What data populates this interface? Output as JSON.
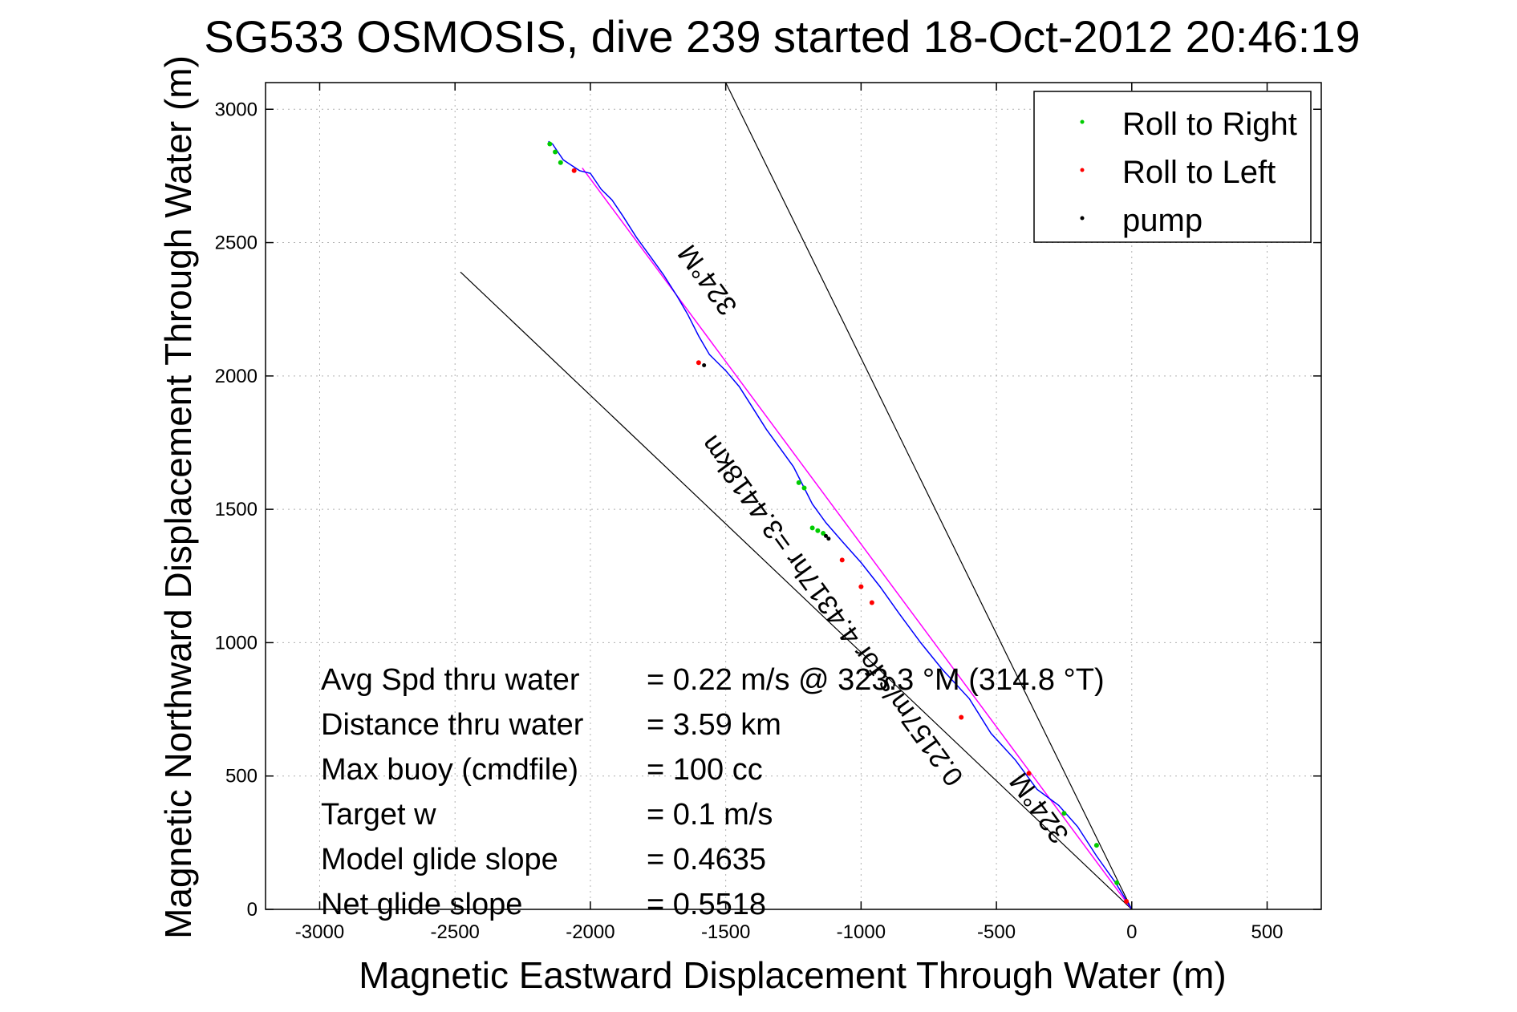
{
  "chart_data": {
    "type": "scatter",
    "title": "SG533 OSMOSIS, dive 239 started 18-Oct-2012 20:46:19",
    "xlabel": "Magnetic Eastward Displacement Through Water (m)",
    "ylabel": "Magnetic Northward Displacement Through Water (m)",
    "xlim": [
      -3200,
      700
    ],
    "ylim": [
      0,
      3100
    ],
    "x_ticks": [
      -3000,
      -2500,
      -2000,
      -1500,
      -1000,
      -500,
      0,
      500
    ],
    "y_ticks": [
      0,
      500,
      1000,
      1500,
      2000,
      2500,
      3000
    ],
    "grid": true,
    "legend_position": "top-right",
    "legend": [
      {
        "name": "Roll to Right",
        "color": "#00cc00"
      },
      {
        "name": "Roll to Left",
        "color": "#ff0000"
      },
      {
        "name": "pump",
        "color": "#000000"
      }
    ],
    "glider_track": {
      "color": "#0000ff",
      "x": [
        0,
        -60,
        -130,
        -200,
        -270,
        -350,
        -430,
        -520,
        -600,
        -700,
        -780,
        -860,
        -930,
        -1000,
        -1070,
        -1130,
        -1180,
        -1210,
        -1250,
        -1300,
        -1350,
        -1400,
        -1450,
        -1500,
        -1560,
        -1600,
        -1640,
        -1680,
        -1730,
        -1780,
        -1830,
        -1880,
        -1920,
        -1960,
        -2000,
        -2040,
        -2070,
        -2100,
        -2120,
        -2140,
        -2155
      ],
      "y": [
        0,
        100,
        200,
        310,
        390,
        450,
        560,
        660,
        790,
        900,
        1000,
        1110,
        1210,
        1300,
        1380,
        1450,
        1520,
        1580,
        1660,
        1730,
        1800,
        1880,
        1960,
        2020,
        2080,
        2150,
        2230,
        2300,
        2380,
        2450,
        2520,
        2600,
        2660,
        2700,
        2760,
        2770,
        2790,
        2810,
        2840,
        2870,
        2880
      ]
    },
    "roll_right_points": {
      "x": [
        -2150,
        -2130,
        -2110,
        -1180,
        -1160,
        -1140,
        -1230,
        -1210,
        -250,
        -130,
        -55
      ],
      "y": [
        2870,
        2840,
        2800,
        1430,
        1420,
        1410,
        1600,
        1580,
        360,
        240,
        100
      ]
    },
    "roll_left_points": {
      "x": [
        -2060,
        -1600,
        -1070,
        -1000,
        -960,
        -630,
        -380,
        -20
      ],
      "y": [
        2770,
        2050,
        1310,
        1210,
        1150,
        720,
        510,
        30
      ]
    },
    "pump_points": {
      "x": [
        -1580,
        -1130,
        -1120
      ],
      "y": [
        2040,
        1400,
        1390
      ]
    },
    "heading_line": {
      "color": "#ff00ff",
      "x": [
        0,
        -2030
      ],
      "y": [
        0,
        2780
      ]
    },
    "cone_lines": [
      {
        "x": [
          0,
          -1500
        ],
        "y": [
          0,
          3100
        ]
      },
      {
        "x": [
          0,
          -2480
        ],
        "y": [
          0,
          2390
        ]
      }
    ],
    "oblique_labels": [
      {
        "text": "324°M",
        "x": -1540,
        "y": 2380,
        "angle": -54
      },
      {
        "text": "0.2157m/s for 4.4317hr =3.4418km",
        "x": -1080,
        "y": 1140,
        "angle": -54
      },
      {
        "text": "324°M",
        "x": -315,
        "y": 400,
        "angle": -54
      }
    ],
    "annotations": [
      {
        "label": "Avg Spd thru water",
        "value": "=  0.22 m/s @ 323.3 °M (314.8 °T)"
      },
      {
        "label": "Distance thru water",
        "value": "=  3.59 km"
      },
      {
        "label": "Max buoy (cmdfile)",
        "value": "= 100 cc"
      },
      {
        "label": "Target w",
        "value": "= 0.1 m/s"
      },
      {
        "label": "Model glide slope",
        "value": "= 0.4635"
      },
      {
        "label": "Net glide slope",
        "value": "= 0.5518"
      }
    ]
  }
}
